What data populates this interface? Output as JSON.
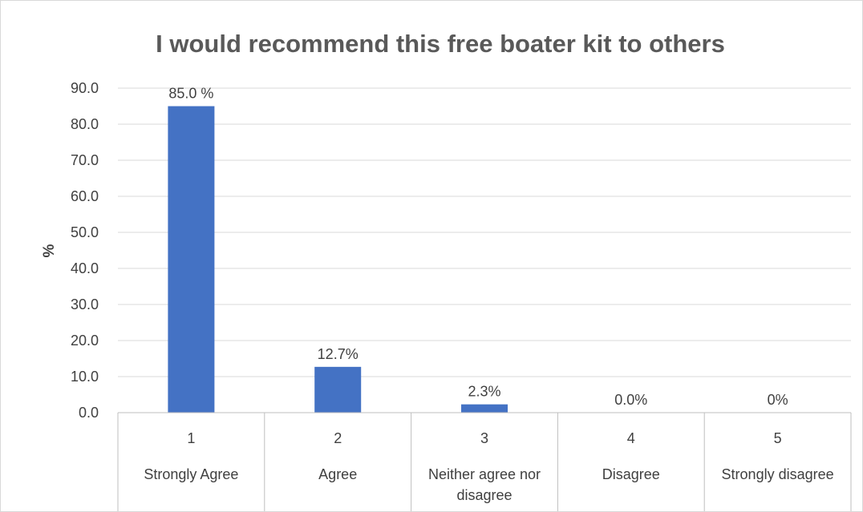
{
  "chart_data": {
    "type": "bar",
    "title": "I would recommend this free boater kit to others",
    "xlabel": "",
    "ylabel": "%",
    "ylim": [
      0,
      90
    ],
    "ytick_step": 10,
    "ytick_labels": [
      "0.0",
      "10.0",
      "20.0",
      "30.0",
      "40.0",
      "50.0",
      "60.0",
      "70.0",
      "80.0",
      "90.0"
    ],
    "grid": true,
    "legend": "none",
    "bar_color": "#4472C4",
    "categories": [
      {
        "code": "1",
        "label": [
          "Strongly Agree"
        ]
      },
      {
        "code": "2",
        "label": [
          "Agree"
        ]
      },
      {
        "code": "3",
        "label": [
          "Neither agree nor",
          "disagree"
        ]
      },
      {
        "code": "4",
        "label": [
          "Disagree"
        ]
      },
      {
        "code": "5",
        "label": [
          "Strongly disagree"
        ]
      }
    ],
    "values": [
      85.0,
      12.7,
      2.3,
      0.0,
      0.0
    ],
    "data_labels": [
      "85.0 %",
      "12.7%",
      "2.3%",
      "0.0%",
      "0%"
    ]
  }
}
